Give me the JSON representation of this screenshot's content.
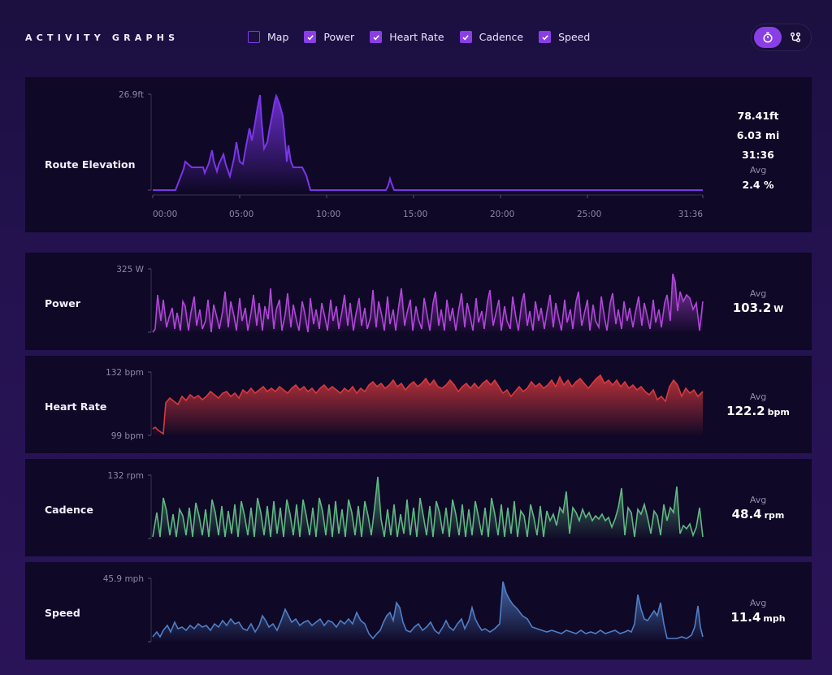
{
  "header": {
    "title": "ACTIVITY GRAPHS",
    "toggles": [
      {
        "label": "Map",
        "checked": false
      },
      {
        "label": "Power",
        "checked": true
      },
      {
        "label": "Heart Rate",
        "checked": true
      },
      {
        "label": "Cadence",
        "checked": true
      },
      {
        "label": "Speed",
        "checked": true
      }
    ],
    "mode_buttons": [
      {
        "icon": "stopwatch-icon",
        "active": true
      },
      {
        "icon": "route-icon",
        "active": false
      }
    ]
  },
  "colors": {
    "accent": "#8a3fe6",
    "elevation": "#7a35e8",
    "power": "#b146d9",
    "heart_rate": "#d8393d",
    "cadence": "#5fb882",
    "speed": "#4f7fc6"
  },
  "elevation": {
    "label": "Route Elevation",
    "y_max_label": "26.9ft",
    "x_ticks": [
      "00:00",
      "05:00",
      "10:00",
      "15:00",
      "20:00",
      "25:00",
      "31:36"
    ],
    "stats": {
      "gain": "78.41ft",
      "distance": "6.03 mi",
      "duration": "31:36",
      "avg_label": "Avg",
      "avg_grade": "2.4 %"
    }
  },
  "power": {
    "label": "Power",
    "y_max_label": "325 W",
    "y_min_label": "",
    "avg_label": "Avg",
    "avg_value": "103.2",
    "avg_unit": "W"
  },
  "heart_rate": {
    "label": "Heart Rate",
    "y_max_label": "132 bpm",
    "y_min_label": "99 bpm",
    "avg_label": "Avg",
    "avg_value": "122.2",
    "avg_unit": "bpm"
  },
  "cadence": {
    "label": "Cadence",
    "y_max_label": "132 rpm",
    "y_min_label": "",
    "avg_label": "Avg",
    "avg_value": "48.4",
    "avg_unit": "rpm"
  },
  "speed": {
    "label": "Speed",
    "y_max_label": "45.9 mph",
    "y_min_label": "",
    "avg_label": "Avg",
    "avg_value": "11.4",
    "avg_unit": "mph"
  }
}
